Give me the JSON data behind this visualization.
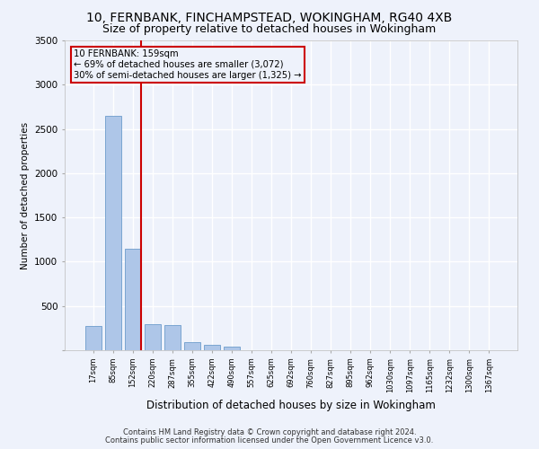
{
  "title1": "10, FERNBANK, FINCHAMPSTEAD, WOKINGHAM, RG40 4XB",
  "title2": "Size of property relative to detached houses in Wokingham",
  "xlabel": "Distribution of detached houses by size in Wokingham",
  "ylabel": "Number of detached properties",
  "bar_labels": [
    "17sqm",
    "85sqm",
    "152sqm",
    "220sqm",
    "287sqm",
    "355sqm",
    "422sqm",
    "490sqm",
    "557sqm",
    "625sqm",
    "692sqm",
    "760sqm",
    "827sqm",
    "895sqm",
    "962sqm",
    "1030sqm",
    "1097sqm",
    "1165sqm",
    "1232sqm",
    "1300sqm",
    "1367sqm"
  ],
  "bar_values": [
    270,
    2650,
    1150,
    290,
    285,
    95,
    60,
    40,
    0,
    0,
    0,
    0,
    0,
    0,
    0,
    0,
    0,
    0,
    0,
    0,
    0
  ],
  "bar_color": "#aec6e8",
  "bar_edge_color": "#5a8fc4",
  "red_line_index": 2,
  "annotation_text": "10 FERNBANK: 159sqm\n← 69% of detached houses are smaller (3,072)\n30% of semi-detached houses are larger (1,325) →",
  "annotation_box_color": "#cc0000",
  "ylim": [
    0,
    3500
  ],
  "yticks": [
    0,
    500,
    1000,
    1500,
    2000,
    2500,
    3000,
    3500
  ],
  "footer1": "Contains HM Land Registry data © Crown copyright and database right 2024.",
  "footer2": "Contains public sector information licensed under the Open Government Licence v3.0.",
  "bg_color": "#eef2fb",
  "grid_color": "#ffffff",
  "title1_fontsize": 10,
  "title2_fontsize": 9
}
